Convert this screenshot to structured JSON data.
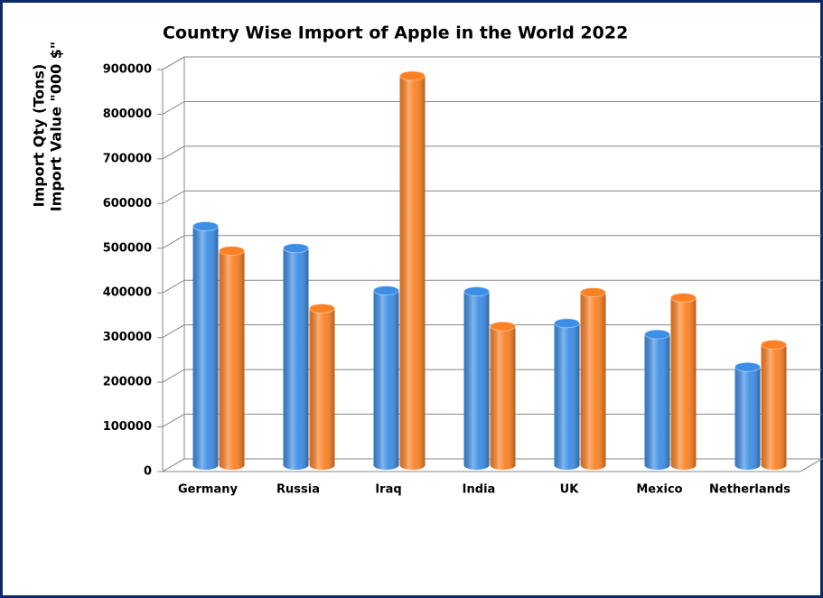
{
  "chart_data": {
    "type": "bar3d",
    "title": "Country Wise Import of Apple  in the World 2022",
    "ylabel": [
      "Import Qty (Tons)",
      "Import Value \"000 $\""
    ],
    "categories": [
      "Germany",
      "Russia",
      "Iraq",
      "India",
      "UK",
      "Mexico",
      "Netherlands"
    ],
    "series": [
      {
        "color": "#3d8ee6",
        "values": [
          535000,
          486000,
          391000,
          389000,
          318000,
          293000,
          220000
        ]
      },
      {
        "color": "#fb8124",
        "values": [
          480000,
          351000,
          872000,
          311000,
          387000,
          375000,
          270000
        ]
      }
    ],
    "ylim": [
      0,
      900000
    ],
    "yticks": [
      0,
      100000,
      200000,
      300000,
      400000,
      500000,
      600000,
      700000,
      800000,
      900000
    ],
    "grid": true
  }
}
